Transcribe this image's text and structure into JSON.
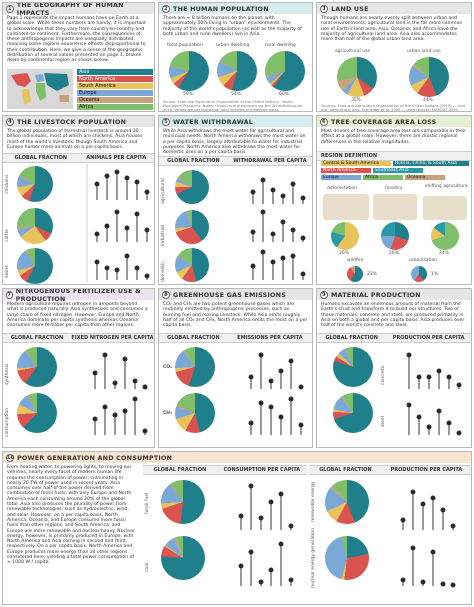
{
  "panels": {
    "p1": {
      "num": "1",
      "title": "THE GEOGRAPHY OF HUMAN IMPACTS",
      "text": "Page 1 represents the impact humans have on Earth at a global scale. While these numbers are handy, it is important to acknowledge that they vary from country-to-country and continent-to-continent. Furthermore, the consequences of these anthropogenic impacts are unequally distributed, meaning some regions experience effects disproportional to their contribution. Here, we give a sense of the geographic distribution of several values presented on page 1, broken down by continental region as shown below.",
      "legend": [
        "Asia",
        "North America",
        "South America",
        "Europe",
        "Oceania",
        "Africa"
      ]
    },
    "p2": {
      "num": "2",
      "title": "THE HUMAN POPULATION",
      "text": "There are ≈ 8 billion humans on the planet, with approximately 50% living in \"urban\" environments. The majority of the world's population (as well as the majority of both urban and rural dwellers) live in Asia.",
      "sub": [
        "total population",
        "urban dwelling",
        "rural dwelling"
      ],
      "pct": [
        "59%",
        "54%",
        "60%"
      ],
      "source": "Source: Food and Agriculture Organization of the United Nations - World Population Prospects. Notes: Urban-rural breakdown via the UN definitions for 2018. Values are per thousand; total includes uninhabited areas."
    },
    "p3": {
      "num": "3",
      "title": "LAND USE",
      "text": "Though humans are nearly evenly split between urban and rural environments, agricultural land is the far more common use of Earth's land area. Asia, Oceania, and Africa have the majority of agricultural land area. Asia also accommodates more than half of the global urban land area.",
      "sub": [
        "agricultural use",
        "urban land use"
      ],
      "pct": [
        "35%",
        "44%"
      ],
      "source": "Sources: Food and Agriculture Organization of the United Nations (2019) — land use; Agricultural land; Schneider et al. 2009 — urban extent; FAOSTAT 2019."
    },
    "p4": {
      "num": "4",
      "title": "THE LIVESTOCK POPULATION",
      "text": "The global population of terrestrial livestock is around 30 billion individuals, most of which are chickens. Asia houses most of the world's livestock, though South America and Europe harbor more animals on a per-capita basis.",
      "sub": [
        "GLOBAL FRACTION",
        "ANIMALS PER CAPITA"
      ],
      "rows": [
        "chickens",
        "cattle",
        "swine"
      ],
      "ylabel": "per capita"
    },
    "p5": {
      "num": "5",
      "title": "WATER WITHDRAWAL",
      "text": "While Asia withdraws the most water for agricultural and municipal needs, North America withdraws the most water on a per capita basis, largely attributable to water for industrial purposes. North America also withdraws the most water for domestic uses on a per capita basis.",
      "sub": [
        "GLOBAL FRACTION",
        "WITHDRAWAL PER CAPITA"
      ],
      "rows": [
        "agricultural",
        "industrial",
        "domestic"
      ],
      "ylabel": "per capita [m³ / yr]",
      "source": "Source: AQUASTAT FAO Food and Agriculture Organization of the United Nations. Notes: Most recent available data is reported for each country."
    },
    "p6": {
      "num": "6",
      "title": "TREE COVERAGE AREA LOSS",
      "text": "Most drivers of tree coverage area loss are comparable in their effect at a global scale. However, there are drastic regional differences in the relative magnitudes.",
      "region": "REGION DEFINITION",
      "regions": [
        "Central & South America",
        "Russia, China, & South Asia",
        "North America",
        "Southeast Asia",
        "Europe",
        "Africa",
        "Oceania"
      ],
      "drivers": [
        "deforestation",
        "forestry",
        "shifting agriculture",
        "wildfire",
        "urbanization"
      ],
      "pct": [
        "26%",
        "26%",
        "24%",
        "23%",
        "1%"
      ],
      "source": "Source: Curtis et al. (2018) Science 361:1108. Notes: Regions are as defined in the source publication."
    },
    "p7": {
      "num": "7",
      "title": "NITROGENOUS FERTILIZER USE & PRODUCTION",
      "text": "Modern agriculture requires nitrogen in amounts beyond what is produced naturally. Asia synthesizes and consumes a large share of fixed nitrogen. However, Europe and North America dominate per capita synthesis whereas Oceania consumes more fertilizer per capita than other regions.",
      "sub": [
        "GLOBAL FRACTION",
        "FIXED NITROGEN PER CAPITA"
      ],
      "rows": [
        "synthesis",
        "consumption"
      ],
      "ylabel": "N per capita [kg / yr]",
      "source": "Source: Food and Agriculture Organization of the United Nations."
    },
    "p8": {
      "num": "8",
      "title": "GREENHOUSE GAS EMISSIONS",
      "text": "CO₂ and CH₄ are two potent greenhouse gases which are routinely emitted by anthropogenic processes, such as burning fuel and rearing livestock. While Asia emits roughly half of all CO₂ and CH₄, North America emits the most on a per capita basis.",
      "sub": [
        "GLOBAL FRACTION",
        "EMISSIONS PER CAPITA"
      ],
      "rows": [
        "CO₂",
        "CH₄"
      ],
      "ylabel": "per capita [t / yr]",
      "source": "Source: CO₂ data provided by Friedlingstein P. et al. 2020 / Global Carbon Project. CH₄ data via FAOSTAT."
    },
    "p9": {
      "num": "9",
      "title": "MATERIAL PRODUCTION",
      "text": "Humans excavate an enormous amount of material from the Earth's crust and transform it to build our structures. Two of these materials, concrete and steel, are produced primarily in Asia on both a global and per capita basis. Asia produces over half of the world's concrete and steel.",
      "sub": [
        "GLOBAL FRACTION",
        "PRODUCTION PER CAPITA"
      ],
      "rows": [
        "concrete",
        "steel"
      ],
      "ylabel": "per capita [1000 kg / yr]",
      "source": "Source: USGS Minerals Yearbook; World Steel Association. Notes: Cement production is used to approximate concrete."
    },
    "p10": {
      "num": "10",
      "title": "POWER GENERATION AND CONSUMPTION",
      "text": "From heating water, to powering lights, to moving our vehicles, nearly every facet of modern human life requires the consumption of power, culminating in nearly 20 TW of power used in recent years. Asia consumes over half of the power derived from combustion of fossil fuels, with only Europe and North America each consuming around 20% of the global total. Asia also produces the plurality of power from renewable technologies, such as hydroelectric, wind, and solar. However, on a per capita basis, North America, Oceania, and Europe consume more fossil fuels than other regions, and South America, and Europe are more renewable and nuclear-heavy. Nuclear energy, however, is primarily produced in Europe, with North America and Asia coming in second and third, respectively. On a per capita basis, North America and Europe produces more energy than all other regions considered here, yielding a total power consumption of ≈ 1000 W / capita.",
      "subA": [
        "GLOBAL FRACTION",
        "CONSUMPTION PER CAPITA"
      ],
      "subB": [
        "GLOBAL FRACTION",
        "PRODUCTION PER CAPITA"
      ],
      "rowsA": [
        "fossil fuel",
        "coal"
      ],
      "rowsB": [
        "renewable energy",
        "nuclear energy generation"
      ],
      "ylabel": "per capita [W]",
      "source": "Source: BP Statistical Review of World Energy 2021. Notes: Power values derived from annual energy consumption."
    }
  },
  "abbr": [
    "As",
    "NA",
    "SA",
    "Eu",
    "Oc",
    "Af"
  ],
  "colors": {
    "asia": "#1f7f8a",
    "na": "#d9534f",
    "sa": "#e8c25a",
    "eu": "#7aa9d8",
    "oc": "#c6a37c",
    "af": "#7fbf6a",
    "other": "#cfcfcf"
  }
}
